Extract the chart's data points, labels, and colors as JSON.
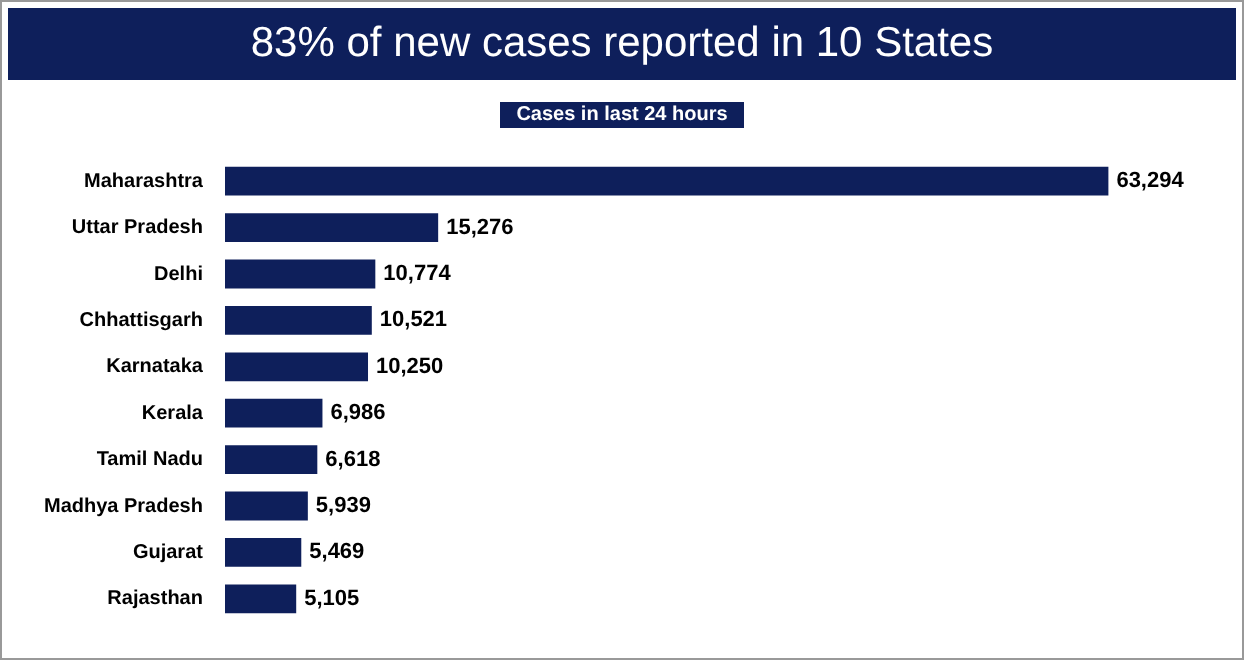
{
  "chart_data": {
    "type": "bar",
    "title": "83% of new cases reported in 10 States",
    "subtitle": "Cases in last 24 hours",
    "orientation": "horizontal",
    "categories": [
      "Maharashtra",
      "Uttar Pradesh",
      "Delhi",
      "Chhattisgarh",
      "Karnataka",
      "Kerala",
      "Tamil Nadu",
      "Madhya Pradesh",
      "Gujarat",
      "Rajasthan"
    ],
    "values": [
      63294,
      15276,
      10774,
      10521,
      10250,
      6986,
      6618,
      5939,
      5469,
      5105
    ],
    "value_labels": [
      "63,294",
      "15,276",
      "10,774",
      "10,521",
      "10,250",
      "6,986",
      "6,618",
      "5,939",
      "5,469",
      "5,105"
    ],
    "color": "#0e1f5b"
  }
}
